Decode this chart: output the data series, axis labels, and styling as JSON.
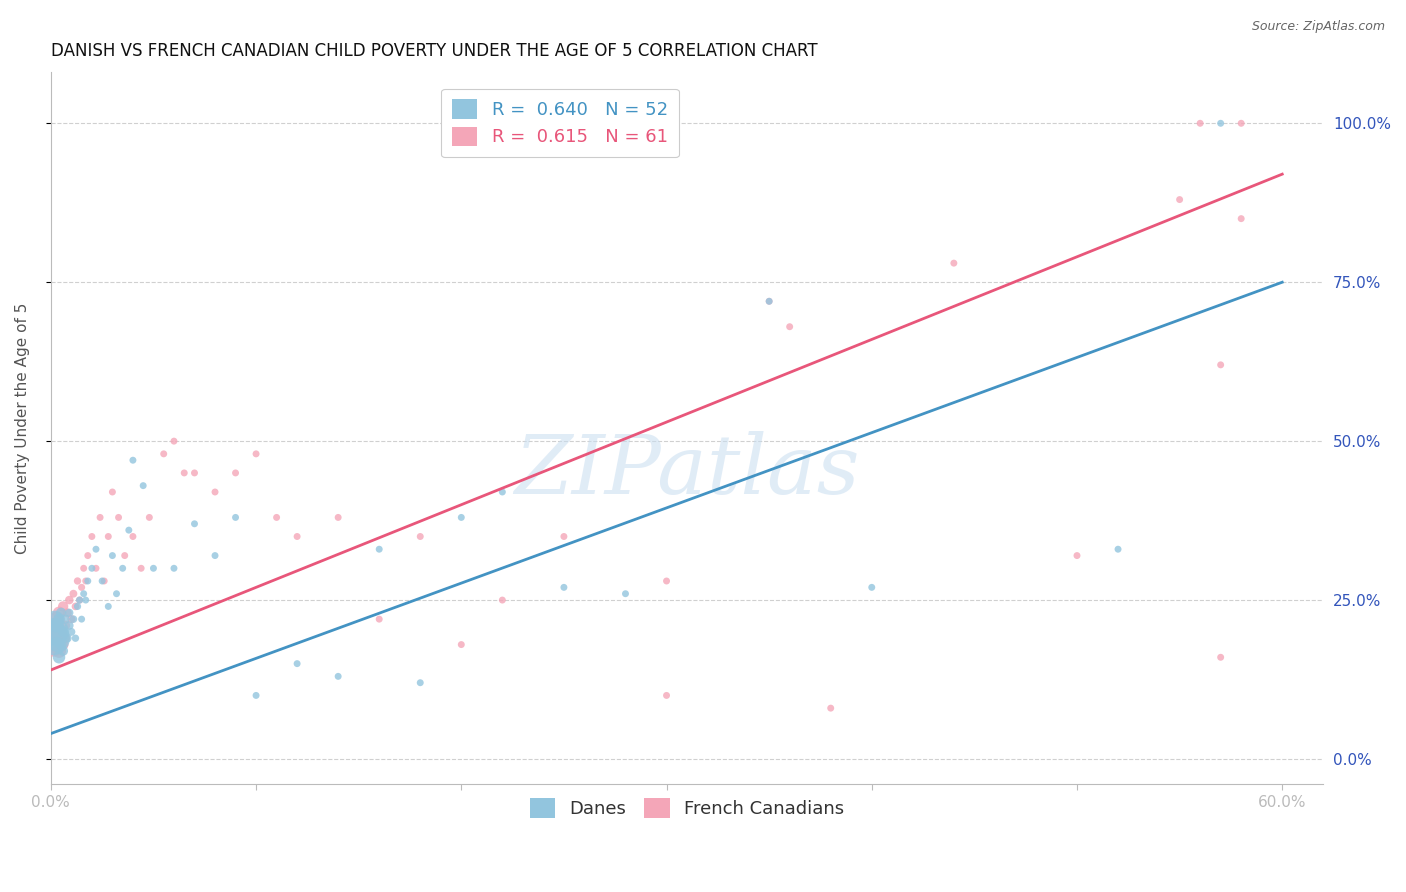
{
  "title": "DANISH VS FRENCH CANADIAN CHILD POVERTY UNDER THE AGE OF 5 CORRELATION CHART",
  "source": "Source: ZipAtlas.com",
  "ylabel_label": "Child Poverty Under the Age of 5",
  "watermark": "ZIPatlas",
  "blue_color": "#92c5de",
  "pink_color": "#f4a6b8",
  "blue_line_color": "#4393c3",
  "pink_line_color": "#e8567a",
  "R_blue": 0.64,
  "N_blue": 52,
  "R_pink": 0.615,
  "N_pink": 61,
  "blue_line": {
    "x0": 0.0,
    "y0": 0.04,
    "x1": 0.6,
    "y1": 0.75
  },
  "pink_line": {
    "x0": 0.0,
    "y0": 0.14,
    "x1": 0.6,
    "y1": 0.92
  },
  "xlim": [
    0.0,
    0.62
  ],
  "ylim": [
    -0.04,
    1.08
  ],
  "x_tick_vals": [
    0.0,
    0.1,
    0.2,
    0.3,
    0.4,
    0.5,
    0.6
  ],
  "x_tick_labels": [
    "0.0%",
    "",
    "",
    "",
    "",
    "",
    "60.0%"
  ],
  "y_tick_vals": [
    0.0,
    0.25,
    0.5,
    0.75,
    1.0
  ],
  "y_tick_labels": [
    "0.0%",
    "25.0%",
    "50.0%",
    "75.0%",
    "100.0%"
  ],
  "title_fontsize": 12,
  "axis_label_fontsize": 11,
  "tick_fontsize": 11,
  "legend_fontsize": 13,
  "danes_x": [
    0.001,
    0.002,
    0.002,
    0.003,
    0.003,
    0.004,
    0.004,
    0.005,
    0.005,
    0.006,
    0.006,
    0.007,
    0.008,
    0.009,
    0.009,
    0.01,
    0.011,
    0.012,
    0.013,
    0.014,
    0.015,
    0.016,
    0.017,
    0.018,
    0.02,
    0.022,
    0.025,
    0.028,
    0.03,
    0.032,
    0.035,
    0.038,
    0.04,
    0.045,
    0.05,
    0.06,
    0.07,
    0.08,
    0.09,
    0.1,
    0.12,
    0.14,
    0.16,
    0.18,
    0.2,
    0.22,
    0.25,
    0.28,
    0.35,
    0.4,
    0.52,
    0.57
  ],
  "danes_y": [
    0.19,
    0.2,
    0.22,
    0.18,
    0.21,
    0.16,
    0.22,
    0.18,
    0.23,
    0.2,
    0.17,
    0.22,
    0.19,
    0.21,
    0.23,
    0.2,
    0.22,
    0.19,
    0.24,
    0.25,
    0.22,
    0.26,
    0.25,
    0.28,
    0.3,
    0.33,
    0.28,
    0.24,
    0.32,
    0.26,
    0.3,
    0.36,
    0.47,
    0.43,
    0.3,
    0.3,
    0.37,
    0.32,
    0.38,
    0.1,
    0.15,
    0.13,
    0.33,
    0.12,
    0.38,
    0.42,
    0.27,
    0.26,
    0.72,
    0.27,
    0.33,
    1.0
  ],
  "danes_sizes": [
    600,
    400,
    150,
    120,
    100,
    80,
    70,
    60,
    55,
    50,
    50,
    45,
    40,
    38,
    35,
    33,
    30,
    28,
    27,
    26,
    25,
    25,
    25,
    25,
    25,
    25,
    25,
    25,
    25,
    25,
    25,
    25,
    25,
    25,
    25,
    25,
    25,
    25,
    25,
    25,
    25,
    25,
    25,
    25,
    25,
    25,
    25,
    25,
    25,
    25,
    25,
    25
  ],
  "french_x": [
    0.001,
    0.002,
    0.003,
    0.003,
    0.004,
    0.004,
    0.005,
    0.006,
    0.006,
    0.007,
    0.007,
    0.008,
    0.009,
    0.01,
    0.011,
    0.012,
    0.013,
    0.014,
    0.015,
    0.016,
    0.017,
    0.018,
    0.02,
    0.022,
    0.024,
    0.026,
    0.028,
    0.03,
    0.033,
    0.036,
    0.04,
    0.044,
    0.048,
    0.055,
    0.06,
    0.065,
    0.07,
    0.08,
    0.09,
    0.1,
    0.11,
    0.12,
    0.14,
    0.16,
    0.18,
    0.2,
    0.22,
    0.25,
    0.3,
    0.35,
    0.38,
    0.3,
    0.36,
    0.44,
    0.5,
    0.55,
    0.57,
    0.58,
    0.56,
    0.58,
    0.57
  ],
  "french_y": [
    0.18,
    0.2,
    0.19,
    0.22,
    0.17,
    0.23,
    0.2,
    0.18,
    0.24,
    0.21,
    0.19,
    0.23,
    0.25,
    0.22,
    0.26,
    0.24,
    0.28,
    0.25,
    0.27,
    0.3,
    0.28,
    0.32,
    0.35,
    0.3,
    0.38,
    0.28,
    0.35,
    0.42,
    0.38,
    0.32,
    0.35,
    0.3,
    0.38,
    0.48,
    0.5,
    0.45,
    0.45,
    0.42,
    0.45,
    0.48,
    0.38,
    0.35,
    0.38,
    0.22,
    0.35,
    0.18,
    0.25,
    0.35,
    0.28,
    0.72,
    0.08,
    0.1,
    0.68,
    0.78,
    0.32,
    0.88,
    0.62,
    0.85,
    1.0,
    1.0,
    0.16
  ],
  "french_sizes": [
    300,
    200,
    150,
    120,
    100,
    80,
    70,
    60,
    55,
    50,
    48,
    42,
    38,
    35,
    32,
    30,
    28,
    27,
    26,
    25,
    25,
    25,
    25,
    25,
    25,
    25,
    25,
    25,
    25,
    25,
    25,
    25,
    25,
    25,
    25,
    25,
    25,
    25,
    25,
    25,
    25,
    25,
    25,
    25,
    25,
    25,
    25,
    25,
    25,
    25,
    25,
    25,
    25,
    25,
    25,
    25,
    25,
    25,
    25,
    25,
    25
  ]
}
